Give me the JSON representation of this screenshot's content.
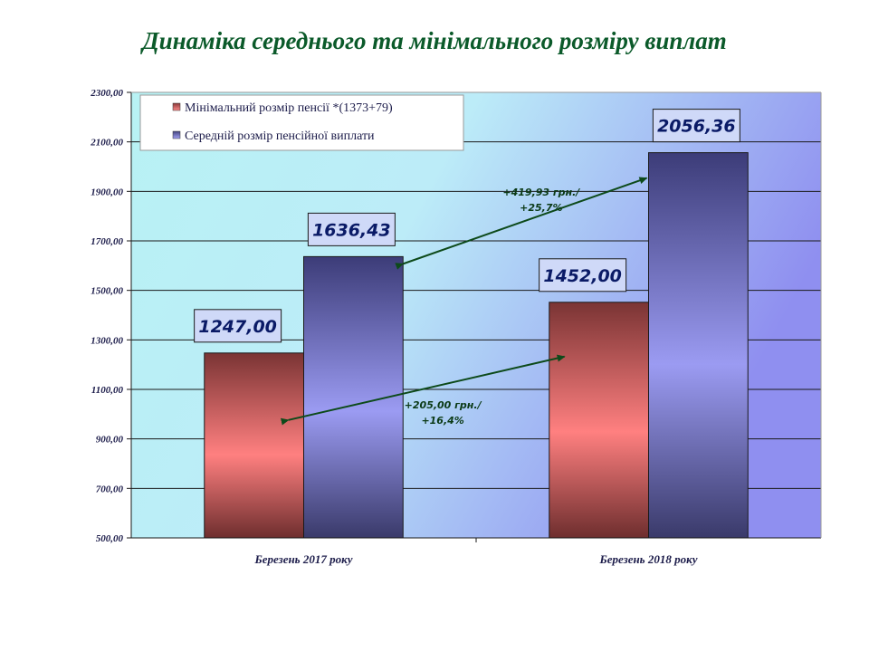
{
  "chart_data": {
    "type": "bar",
    "title": "Динаміка середнього та мінімального розміру виплат",
    "categories": [
      "Березень 2017 року",
      "Березень 2018 року"
    ],
    "series": [
      {
        "name": "Мінімальний розмір пенсії *(1373+79)",
        "values": [
          1247.0,
          1452.0
        ],
        "labels": [
          "1247,00",
          "1452,00"
        ],
        "color": "#d9585a"
      },
      {
        "name": "Середній розмір пенсійної виплати",
        "values": [
          1636.43,
          2056.36
        ],
        "labels": [
          "1636,43",
          "2056,36"
        ],
        "color": "#8a8ae6"
      }
    ],
    "ylim": [
      500,
      2300
    ],
    "yticks": [
      500,
      700,
      900,
      1100,
      1300,
      1500,
      1700,
      1900,
      2100,
      2300
    ],
    "ytick_labels": [
      "500,00",
      "700,00",
      "900,00",
      "1100,00",
      "1300,00",
      "1500,00",
      "1700,00",
      "1900,00",
      "2100,00",
      "2300,00"
    ],
    "xlabel": "",
    "ylabel": "",
    "grid": true,
    "legend": "top-left",
    "annotations": [
      {
        "line1": "+419,93 грн./",
        "line2": "+25,7%",
        "from": {
          "category": 0,
          "series": 1
        },
        "to": {
          "category": 1,
          "series": 1
        }
      },
      {
        "line1": "+205,00 грн./",
        "line2": "+16,4%",
        "from": {
          "category": 0,
          "series": 0
        },
        "to": {
          "category": 1,
          "series": 0
        }
      }
    ]
  }
}
